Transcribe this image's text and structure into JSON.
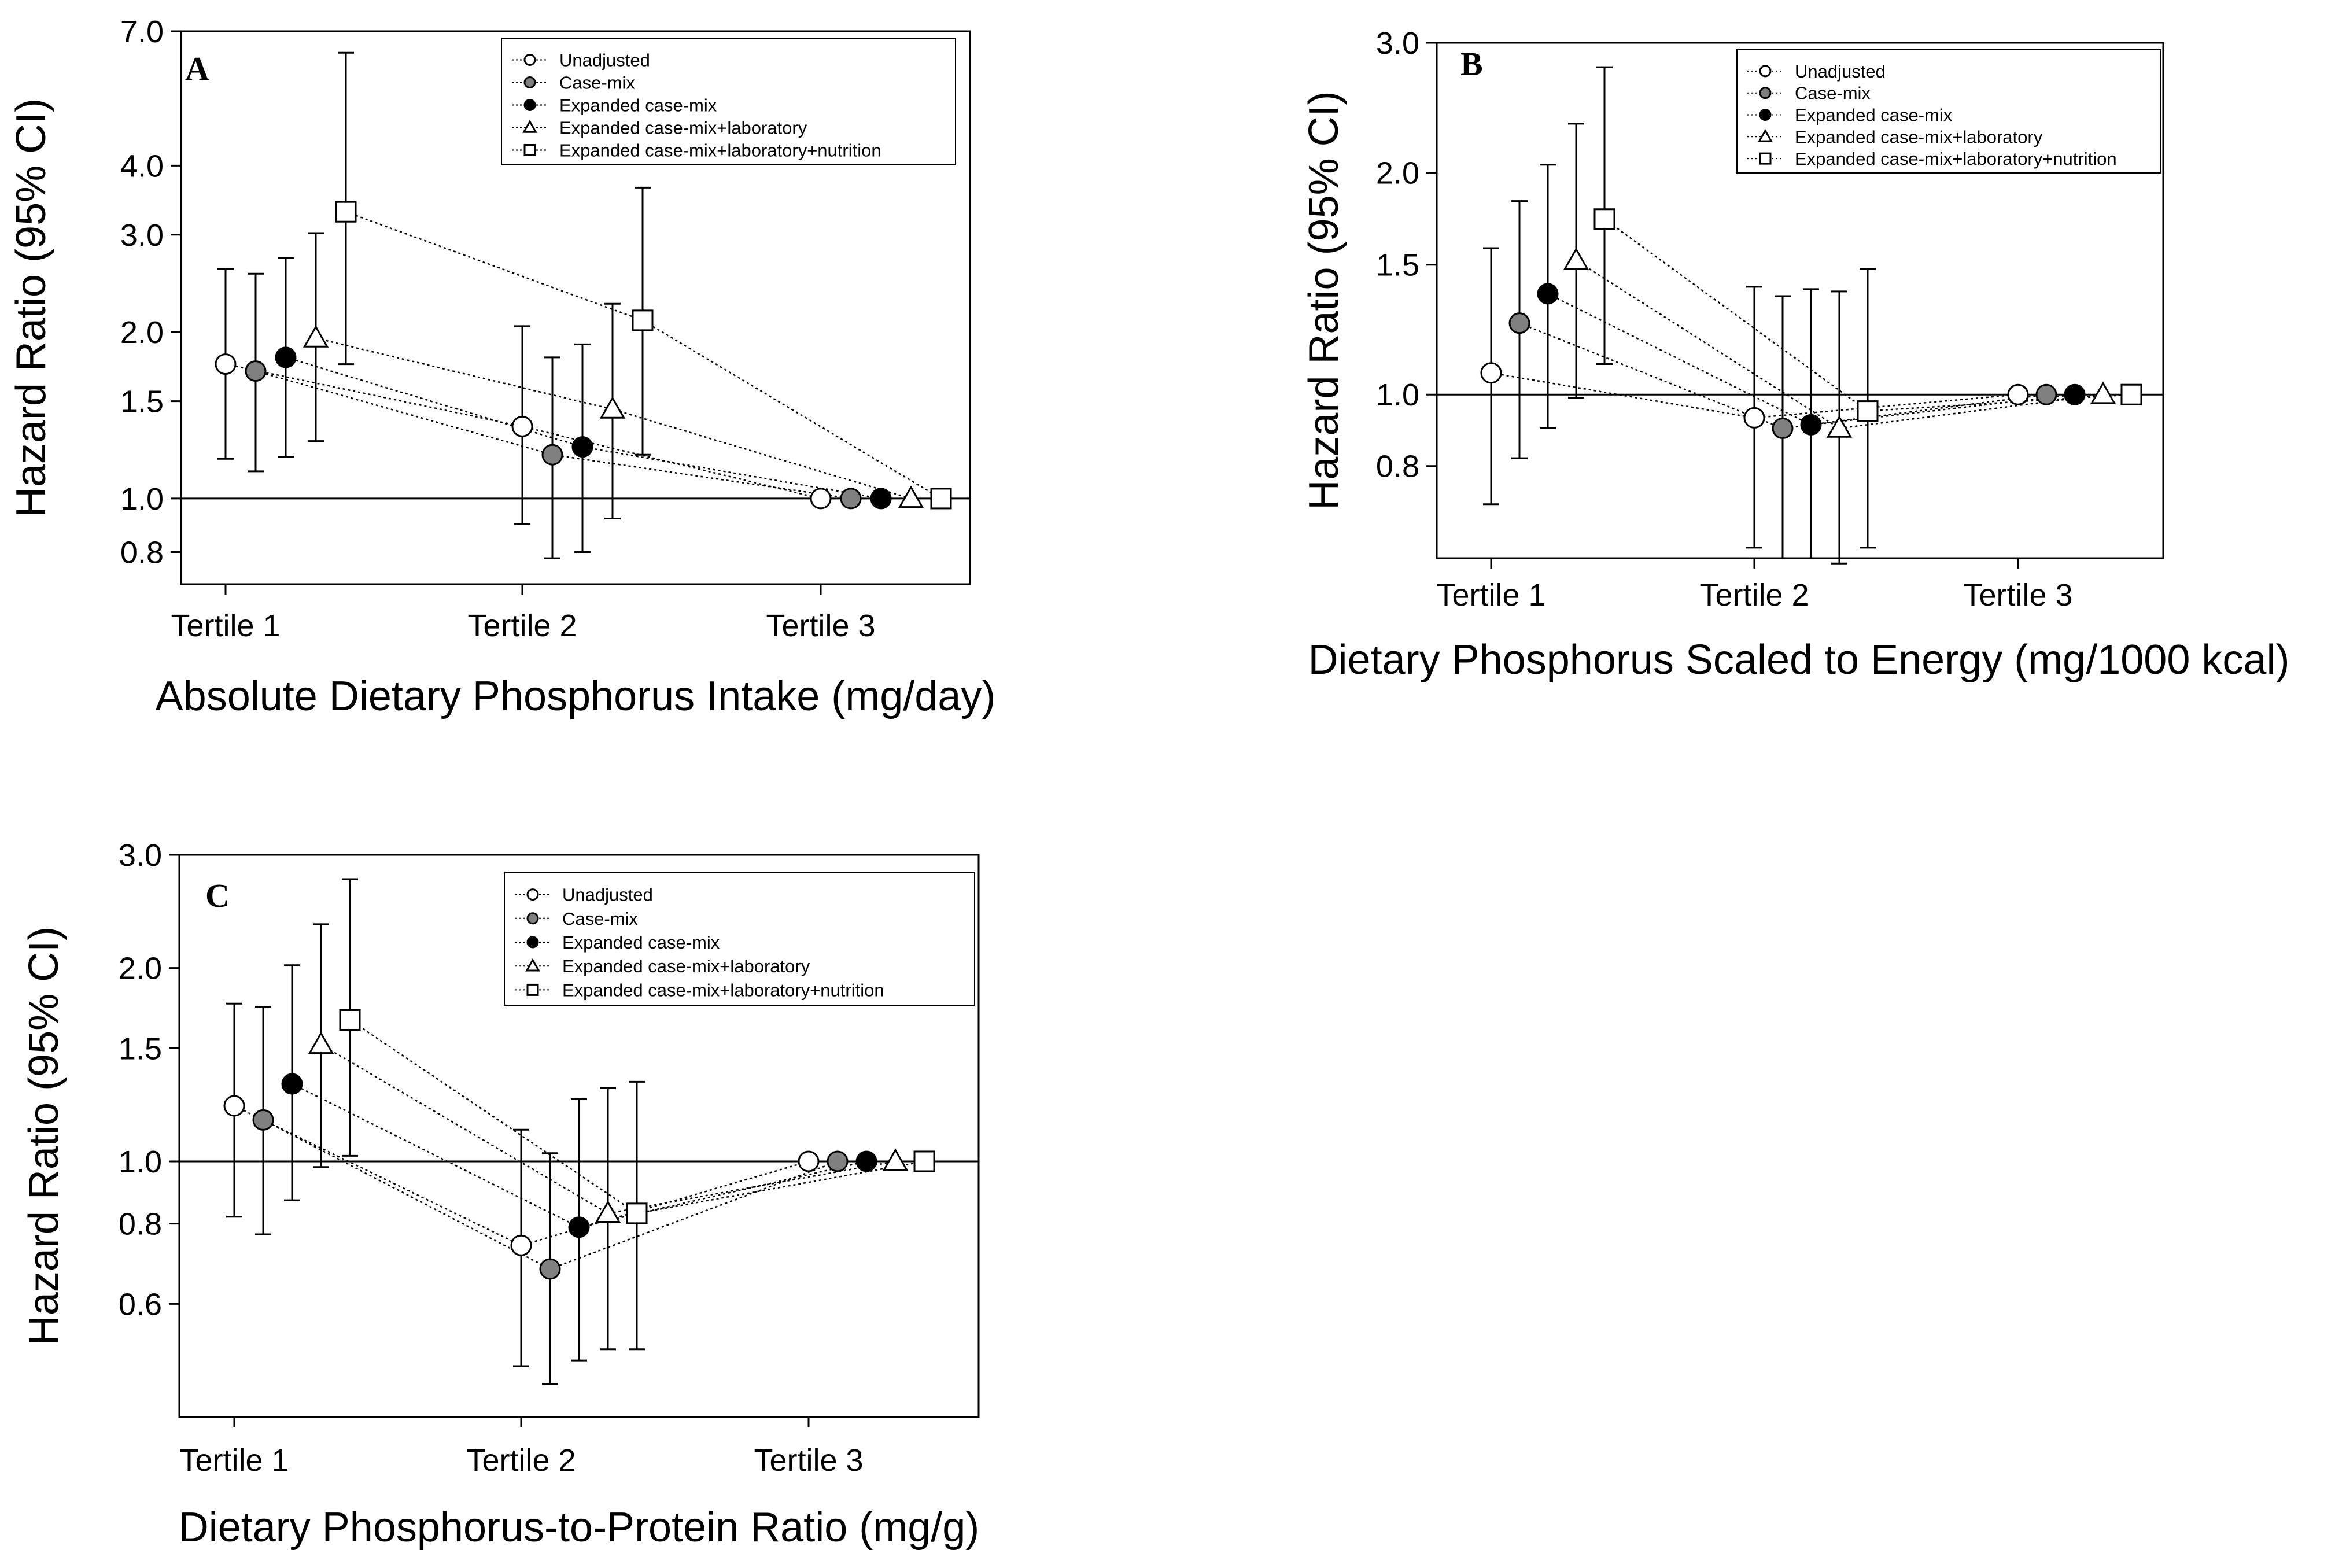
{
  "figure": {
    "series_order": [
      "Unadjusted",
      "Case-mix",
      "Expanded case-mix",
      "Expanded case-mix+laboratory",
      "Expanded case-mix+laboratory+nutrition"
    ],
    "marker_colors": {
      "Unadjusted": "#ffffff",
      "Case-mix": "#808080",
      "Expanded case-mix": "#000000",
      "Expanded case-mix+laboratory": "#ffffff",
      "Expanded case-mix+laboratory+nutrition": "#ffffff"
    },
    "marker_shapes": {
      "Unadjusted": "circle",
      "Case-mix": "circle",
      "Expanded case-mix": "circle",
      "Expanded case-mix+laboratory": "triangle",
      "Expanded case-mix+laboratory+nutrition": "square"
    }
  },
  "chart_data": [
    {
      "id": "A",
      "type": "scatter",
      "panel_label": "A",
      "xlabel": "Absolute Dietary Phosphorus Intake (mg/day)",
      "ylabel": "Hazard Ratio (95% CI)",
      "yscale": "log",
      "ylim": [
        0.7,
        7.0
      ],
      "yticks": [
        0.8,
        1.0,
        1.5,
        2.0,
        3.0,
        4.0,
        7.0
      ],
      "ytick_labels": [
        "0.8",
        "1.0",
        "1.5",
        "2.0",
        "3.0",
        "4.0",
        "7.0"
      ],
      "categories": [
        "Tertile 1",
        "Tertile 2",
        "Tertile 3"
      ],
      "reference_line": 1.0,
      "legend_position": "top-right",
      "series": [
        {
          "name": "Unadjusted",
          "values": [
            1.75,
            1.35,
            1.0
          ],
          "lower": [
            1.18,
            0.9,
            1.0
          ],
          "upper": [
            2.6,
            2.05,
            1.0
          ]
        },
        {
          "name": "Case-mix",
          "values": [
            1.7,
            1.2,
            1.0
          ],
          "lower": [
            1.12,
            0.78,
            1.0
          ],
          "upper": [
            2.55,
            1.8,
            1.0
          ]
        },
        {
          "name": "Expanded case-mix",
          "values": [
            1.8,
            1.24,
            1.0
          ],
          "lower": [
            1.19,
            0.8,
            1.0
          ],
          "upper": [
            2.72,
            1.9,
            1.0
          ]
        },
        {
          "name": "Expanded case-mix+laboratory",
          "values": [
            1.95,
            1.45,
            1.0
          ],
          "lower": [
            1.27,
            0.92,
            1.0
          ],
          "upper": [
            3.02,
            2.25,
            1.0
          ]
        },
        {
          "name": "Expanded case-mix+laboratory+nutrition",
          "values": [
            3.3,
            2.1,
            1.0
          ],
          "lower": [
            1.75,
            1.2,
            1.0
          ],
          "upper": [
            6.4,
            3.65,
            1.0
          ]
        }
      ]
    },
    {
      "id": "B",
      "type": "scatter",
      "panel_label": "B",
      "xlabel": "Dietary Phosphorus Scaled to Energy (mg/1000 kcal)",
      "ylabel": "Hazard Ratio (95% CI)",
      "yscale": "log",
      "ylim": [
        0.6,
        3.0
      ],
      "yticks": [
        0.8,
        1.0,
        1.5,
        2.0,
        3.0
      ],
      "ytick_labels": [
        "0.8",
        "1.0",
        "1.5",
        "2.0",
        "3.0"
      ],
      "categories": [
        "Tertile 1",
        "Tertile 2",
        "Tertile 3"
      ],
      "reference_line": 1.0,
      "legend_position": "top-right",
      "series": [
        {
          "name": "Unadjusted",
          "values": [
            1.07,
            0.93,
            1.0
          ],
          "lower": [
            0.71,
            0.62,
            1.0
          ],
          "upper": [
            1.58,
            1.4,
            1.0
          ]
        },
        {
          "name": "Case-mix",
          "values": [
            1.25,
            0.9,
            1.0
          ],
          "lower": [
            0.82,
            0.6,
            1.0
          ],
          "upper": [
            1.83,
            1.36,
            1.0
          ]
        },
        {
          "name": "Expanded case-mix",
          "values": [
            1.37,
            0.91,
            1.0
          ],
          "lower": [
            0.9,
            0.6,
            1.0
          ],
          "upper": [
            2.05,
            1.39,
            1.0
          ]
        },
        {
          "name": "Expanded case-mix+laboratory",
          "values": [
            1.52,
            0.9,
            1.0
          ],
          "lower": [
            0.99,
            0.59,
            1.0
          ],
          "upper": [
            2.33,
            1.38,
            1.0
          ]
        },
        {
          "name": "Expanded case-mix+laboratory+nutrition",
          "values": [
            1.73,
            0.95,
            1.0
          ],
          "lower": [
            1.1,
            0.62,
            1.0
          ],
          "upper": [
            2.78,
            1.48,
            1.0
          ]
        }
      ]
    },
    {
      "id": "C",
      "type": "scatter",
      "panel_label": "C",
      "xlabel": "Dietary Phosphorus-to-Protein Ratio (mg/g)",
      "ylabel": "Hazard Ratio (95% CI)",
      "yscale": "log",
      "ylim": [
        0.4,
        3.0
      ],
      "yticks": [
        0.6,
        0.8,
        1.0,
        1.5,
        2.0,
        3.0
      ],
      "ytick_labels": [
        "0.6",
        "0.8",
        "1.0",
        "1.5",
        "2.0",
        "3.0"
      ],
      "categories": [
        "Tertile 1",
        "Tertile 2",
        "Tertile 3"
      ],
      "reference_line": 1.0,
      "legend_position": "top-right",
      "series": [
        {
          "name": "Unadjusted",
          "values": [
            1.22,
            0.74,
            1.0
          ],
          "lower": [
            0.82,
            0.48,
            1.0
          ],
          "upper": [
            1.76,
            1.12,
            1.0
          ]
        },
        {
          "name": "Case-mix",
          "values": [
            1.16,
            0.68,
            1.0
          ],
          "lower": [
            0.77,
            0.45,
            1.0
          ],
          "upper": [
            1.74,
            1.03,
            1.0
          ]
        },
        {
          "name": "Expanded case-mix",
          "values": [
            1.32,
            0.79,
            1.0
          ],
          "lower": [
            0.87,
            0.49,
            1.0
          ],
          "upper": [
            2.02,
            1.25,
            1.0
          ]
        },
        {
          "name": "Expanded case-mix+laboratory",
          "values": [
            1.52,
            0.83,
            1.0
          ],
          "lower": [
            0.98,
            0.51,
            1.0
          ],
          "upper": [
            2.34,
            1.3,
            1.0
          ]
        },
        {
          "name": "Expanded case-mix+laboratory+nutrition",
          "values": [
            1.66,
            0.83,
            1.0
          ],
          "lower": [
            1.02,
            0.51,
            1.0
          ],
          "upper": [
            2.75,
            1.33,
            1.0
          ]
        }
      ]
    }
  ]
}
